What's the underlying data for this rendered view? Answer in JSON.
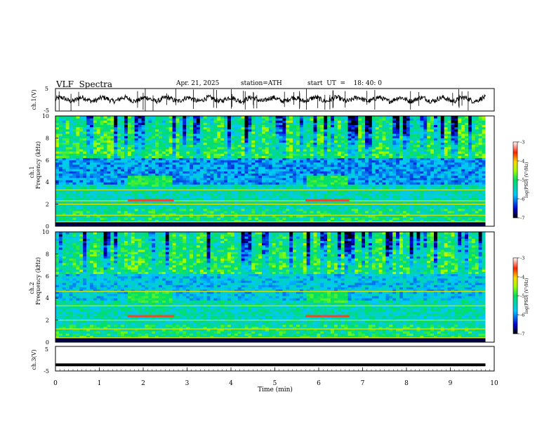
{
  "header": {
    "title": "VLF  Spectra",
    "date": "Apr. 21, 2025",
    "station": "station=ATH",
    "start": "start  UT  =    18: 40: 0"
  },
  "chart_data": [
    {
      "type": "line",
      "panel": "ch1-waveform",
      "ylabel": "ch.1(V)",
      "ylim": [
        -5,
        5
      ],
      "yticks": [
        "5",
        "-5"
      ],
      "xlim": [
        0,
        10
      ],
      "baseline": 0.2,
      "note": "dense noisy waveform with sparse spikes"
    },
    {
      "type": "heatmap",
      "panel": "ch1-spectrogram",
      "ylabel_line1": "ch.1",
      "ylabel_line2": "Frequency  (kHz)",
      "ylim": [
        0,
        10
      ],
      "yticks": [
        "0",
        "2",
        "4",
        "6",
        "8",
        "10"
      ],
      "xlim": [
        0,
        10
      ],
      "data_end_min": 9.8,
      "colorbar": {
        "label": "log(PSD) (V²/Hz)",
        "ticks": [
          "-3",
          "-4",
          "-5",
          "-6",
          "-7"
        ],
        "range": [
          -7,
          -3
        ]
      },
      "elevated_segments_min": [
        [
          1.65,
          2.7
        ],
        [
          5.7,
          6.7
        ]
      ],
      "narrowband_lines_khz": [
        0.4,
        1.0,
        2.0,
        2.3,
        3.3
      ]
    },
    {
      "type": "heatmap",
      "panel": "ch2-spectrogram",
      "ylabel_line1": "ch.2",
      "ylabel_line2": "Frequency  (kHz)",
      "ylim": [
        0,
        10
      ],
      "yticks": [
        "0",
        "2",
        "4",
        "6",
        "8",
        "10"
      ],
      "xlim": [
        0,
        10
      ],
      "data_end_min": 9.8,
      "colorbar": {
        "label": "log(PSD) (V²/Hz)",
        "ticks": [
          "-3",
          "-4",
          "-5",
          "-6",
          "-7"
        ],
        "range": [
          -7,
          -3
        ]
      },
      "elevated_segments_min": [
        [
          1.65,
          2.7
        ],
        [
          5.7,
          6.7
        ]
      ],
      "narrowband_lines_khz": [
        0.4,
        1.2,
        2.0,
        3.3,
        4.6
      ]
    },
    {
      "type": "line",
      "panel": "ch3-waveform",
      "ylabel": "ch.3(V)",
      "ylim": [
        -5,
        5
      ],
      "yticks": [
        "5",
        "-5"
      ],
      "xlim": [
        0,
        10
      ],
      "baseline": -2.5,
      "xlabel": "Time  (min)",
      "xticks": [
        "0",
        "1",
        "2",
        "3",
        "4",
        "5",
        "6",
        "7",
        "8",
        "9",
        "10"
      ]
    }
  ]
}
